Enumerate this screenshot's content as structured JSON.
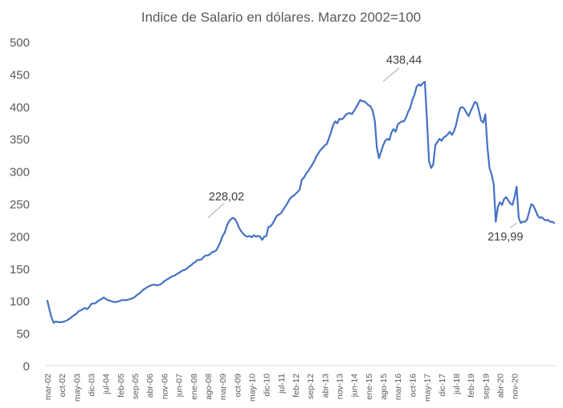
{
  "chart_data": {
    "type": "line",
    "title": "Indice de Salario en dólares. Marzo 2002=100",
    "xlabel": "",
    "ylabel": "",
    "ylim": [
      0,
      500
    ],
    "yticks": [
      0,
      50,
      100,
      150,
      200,
      250,
      300,
      350,
      400,
      450,
      500
    ],
    "grid": false,
    "legend": "none",
    "x_tick_labels": [
      "mar-02",
      "oct-02",
      "may-03",
      "dic-03",
      "jul-04",
      "feb-05",
      "sep-05",
      "abr-06",
      "nov-06",
      "jun-07",
      "ene-08",
      "ago-08",
      "mar-09",
      "oct-09",
      "may-10",
      "dic-10",
      "jul-11",
      "feb-12",
      "sep-12",
      "abr-13",
      "nov-13",
      "jun-14",
      "ene-15",
      "ago-15",
      "mar-16",
      "oct-16",
      "may-17",
      "dic-17",
      "jul-18",
      "feb-19",
      "sep-19",
      "abr-20",
      "nov-20"
    ],
    "series": [
      {
        "color": "#4472c4",
        "x_start": "mar-02",
        "frequency": "monthly",
        "values": [
          100,
          86,
          74,
          66,
          68,
          67,
          67,
          67,
          68,
          69,
          71,
          73,
          76,
          78,
          80,
          84,
          85,
          87,
          89,
          87,
          90,
          95,
          96,
          96,
          99,
          101,
          103,
          105,
          103,
          101,
          100,
          99,
          98,
          98,
          99,
          100,
          101,
          101,
          101,
          102,
          103,
          104,
          106,
          109,
          111,
          114,
          117,
          119,
          121,
          123,
          124,
          125,
          124,
          124,
          125,
          127,
          130,
          132,
          134,
          136,
          138,
          139,
          141,
          143,
          145,
          147,
          148,
          150,
          153,
          155,
          158,
          160,
          163,
          163,
          164,
          168,
          170,
          170,
          172,
          175,
          176,
          178,
          184,
          191,
          200,
          205,
          215,
          222,
          226,
          228,
          226,
          220,
          212,
          207,
          203,
          200,
          199,
          200,
          198,
          201,
          199,
          200,
          199,
          194,
          199,
          200,
          214,
          215,
          219,
          225,
          231,
          233,
          235,
          240,
          245,
          250,
          256,
          260,
          262,
          265,
          268,
          272,
          287,
          290,
          296,
          300,
          305,
          310,
          316,
          323,
          328,
          333,
          336,
          340,
          342,
          351,
          360,
          371,
          377,
          374,
          381,
          380,
          382,
          387,
          389,
          390,
          388,
          393,
          398,
          404,
          410,
          408,
          408,
          405,
          402,
          400,
          393,
          378,
          336,
          320,
          330,
          340,
          347,
          350,
          348,
          360,
          365,
          361,
          372,
          375,
          377,
          377,
          383,
          392,
          398,
          410,
          418,
          430,
          434,
          432,
          436,
          438,
          380,
          315,
          305,
          310,
          340,
          345,
          350,
          347,
          352,
          354,
          357,
          361,
          356,
          362,
          372,
          387,
          398,
          399,
          396,
          390,
          385,
          393,
          400,
          407,
          405,
          392,
          378,
          375,
          388,
          337,
          305,
          295,
          280,
          222,
          245,
          252,
          248,
          257,
          260,
          255,
          250,
          248,
          260,
          276,
          228,
          220,
          222,
          222,
          225,
          237,
          249,
          247,
          240,
          232,
          228,
          229,
          226,
          224,
          225,
          222,
          222,
          220
        ]
      }
    ],
    "annotations": [
      {
        "text": "228,02",
        "x": "ago-08",
        "y": 228.02
      },
      {
        "text": "438,44",
        "x": "ago-15",
        "y": 438.44
      },
      {
        "text": "219,99",
        "x": "dic-20",
        "y": 219.99
      }
    ]
  }
}
